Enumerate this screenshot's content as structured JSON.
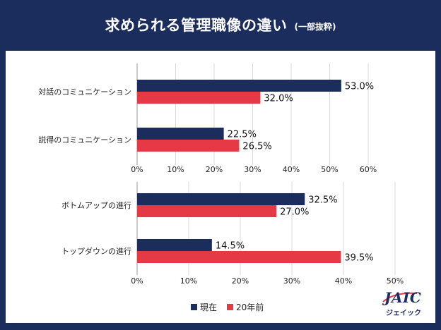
{
  "header": {
    "title": "求められる管理職像の違い",
    "subtitle": "(一部抜粋)"
  },
  "legend": {
    "current": "現在",
    "past": "20年前"
  },
  "logo": {
    "main": "JAIC",
    "sub": "ジェイック"
  },
  "colors": {
    "background": "#1b2d5c",
    "current": "#1b2d5c",
    "past": "#e63946",
    "grid": "#d9d9d9"
  },
  "chart_data": [
    {
      "type": "bar",
      "orientation": "horizontal",
      "categories": [
        "対話のコミュニケーション",
        "説得のコミュニケーション"
      ],
      "series": [
        {
          "name": "現在",
          "values": [
            53.0,
            22.5
          ]
        },
        {
          "name": "20年前",
          "values": [
            32.0,
            26.5
          ]
        }
      ],
      "data_labels": [
        [
          "53.0%",
          "22.5%"
        ],
        [
          "32.0%",
          "26.5%"
        ]
      ],
      "xlim": [
        0,
        60
      ],
      "xticks": [
        "0%",
        "10%",
        "20%",
        "30%",
        "40%",
        "50%",
        "60%"
      ],
      "grid": true
    },
    {
      "type": "bar",
      "orientation": "horizontal",
      "categories": [
        "ボトムアップの進行",
        "トップダウンの進行"
      ],
      "series": [
        {
          "name": "現在",
          "values": [
            32.5,
            14.5
          ]
        },
        {
          "name": "20年前",
          "values": [
            27.0,
            39.5
          ]
        }
      ],
      "data_labels": [
        [
          "32.5%",
          "14.5%"
        ],
        [
          "27.0%",
          "39.5%"
        ]
      ],
      "xlim": [
        0,
        50
      ],
      "xticks": [
        "0%",
        "10%",
        "20%",
        "30%",
        "40%",
        "50%"
      ],
      "grid": true
    }
  ]
}
